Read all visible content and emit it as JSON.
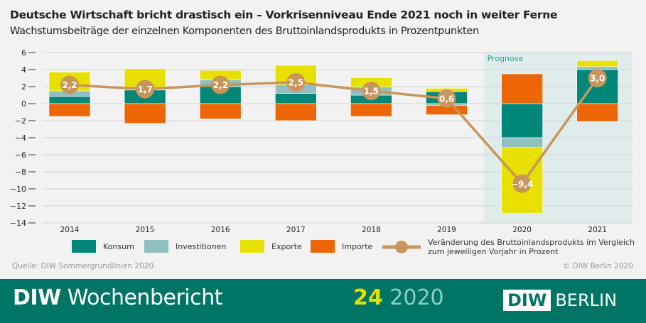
{
  "title": "Deutsche Wirtschaft bricht drastisch ein – Vorkrisenniveau Ende 2021 noch in weiter Ferne",
  "subtitle": "Wachstumsbeiträge der einzelnen Komponenten des Bruttoinlandsprodukts in Prozentpunkten",
  "source": "Quelle: DIW Sommergrundlinien 2020.",
  "copyright": "© DIW Berlin 2020",
  "footer": {
    "brand_bold": "DIW",
    "brand": "Wochenbericht",
    "issue_number": "24",
    "issue_year": "2020",
    "logo_left": "DIW",
    "logo_right": "BERLIN"
  },
  "chart_data": {
    "type": "bar",
    "stacked": true,
    "categories": [
      "2014",
      "2015",
      "2016",
      "2017",
      "2018",
      "2019",
      "2020",
      "2021"
    ],
    "ylim": [
      -14,
      6
    ],
    "yticks": [
      6,
      4,
      2,
      0,
      -2,
      -4,
      -6,
      -8,
      -10,
      -12,
      -14
    ],
    "ytick_labels": [
      "6",
      "4",
      "2",
      "0",
      "−2",
      "−4",
      "−6",
      "−8",
      "−10",
      "−12",
      "−14"
    ],
    "grid": true,
    "legend_position": "bottom",
    "annotation": {
      "text": "Prognose",
      "from": "2020",
      "to": "2021"
    },
    "series": [
      {
        "name": "Konsum",
        "color": "#00877a",
        "values": [
          0.85,
          1.6,
          2.0,
          1.2,
          1.0,
          1.4,
          -4.0,
          4.0
        ]
      },
      {
        "name": "Investitionen",
        "color": "#8fbfbf",
        "values": [
          0.65,
          0.0,
          0.8,
          1.0,
          0.95,
          -0.2,
          -1.15,
          0.35
        ]
      },
      {
        "name": "Exporte",
        "color": "#e8e000",
        "values": [
          2.2,
          2.5,
          1.1,
          2.3,
          1.1,
          0.4,
          -7.7,
          0.7
        ]
      },
      {
        "name": "Importe",
        "color": "#ec6608",
        "values": [
          -1.5,
          -2.3,
          -1.8,
          -2.0,
          -1.5,
          -1.1,
          3.5,
          -2.1
        ]
      }
    ],
    "line": {
      "name": "Veränderung des Bruttoinlandsprodukts im Vergleich zum jeweiligen Vorjahr in Prozent",
      "name_line1": "Veränderung des Bruttoinlandsprodukts im Vergleich",
      "name_line2": "zum jeweiligen Vorjahr in Prozent",
      "color": "#c8955a",
      "values": [
        2.2,
        1.7,
        2.2,
        2.5,
        1.5,
        0.6,
        -9.4,
        3.0
      ],
      "labels": [
        "2,2",
        "1,7",
        "2,2",
        "2,5",
        "1,5",
        "0,6",
        "−9,4",
        "3,0"
      ]
    }
  }
}
